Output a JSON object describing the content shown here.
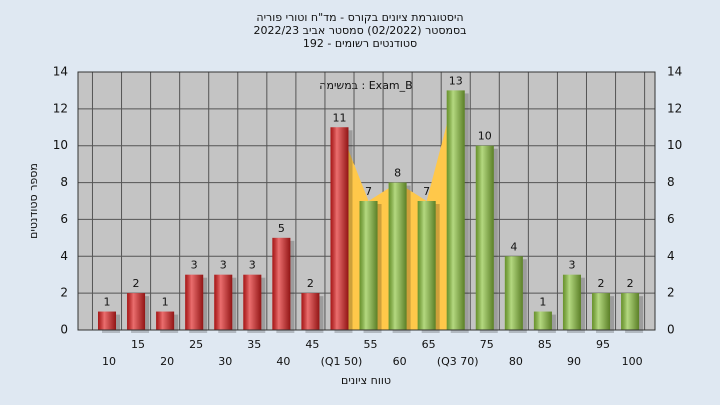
{
  "chart_data": {
    "type": "bar",
    "title": [
      "היסטוגרמת ציונים בקורס - מד\"ח וטורי פוריה",
      "בסמסטר (02/2022) סמסטר אביב 2022/23",
      "סטודנטים רשומים - 192"
    ],
    "annotation": "במשימה : Exam_B",
    "x_label": "טווח ציונים",
    "y_label": "מספר סטודנטים",
    "categories": [
      "10",
      "15",
      "20",
      "25",
      "30",
      "35",
      "40",
      "45",
      "(Q1 50)",
      "55",
      "60",
      "65",
      "(Q3 70)",
      "75",
      "80",
      "85",
      "90",
      "95",
      "100"
    ],
    "values": [
      1,
      2,
      1,
      3,
      3,
      3,
      5,
      2,
      11,
      7,
      8,
      7,
      13,
      10,
      4,
      1,
      3,
      2,
      2
    ],
    "colors": [
      "#e02020",
      "#e02020",
      "#e02020",
      "#e02020",
      "#e02020",
      "#e02020",
      "#e02020",
      "#e02020",
      "#e02020",
      "#8cc43c",
      "#8cc43c",
      "#8cc43c",
      "#8cc43c",
      "#8cc43c",
      "#8cc43c",
      "#8cc43c",
      "#8cc43c",
      "#8cc43c",
      "#8cc43c"
    ],
    "highlight_range": [
      8,
      12
    ],
    "highlight_color": "#ffc84a",
    "ylim": [
      0,
      14
    ],
    "yticks": [
      0,
      2,
      4,
      6,
      8,
      10,
      12,
      14
    ],
    "grid": true
  }
}
